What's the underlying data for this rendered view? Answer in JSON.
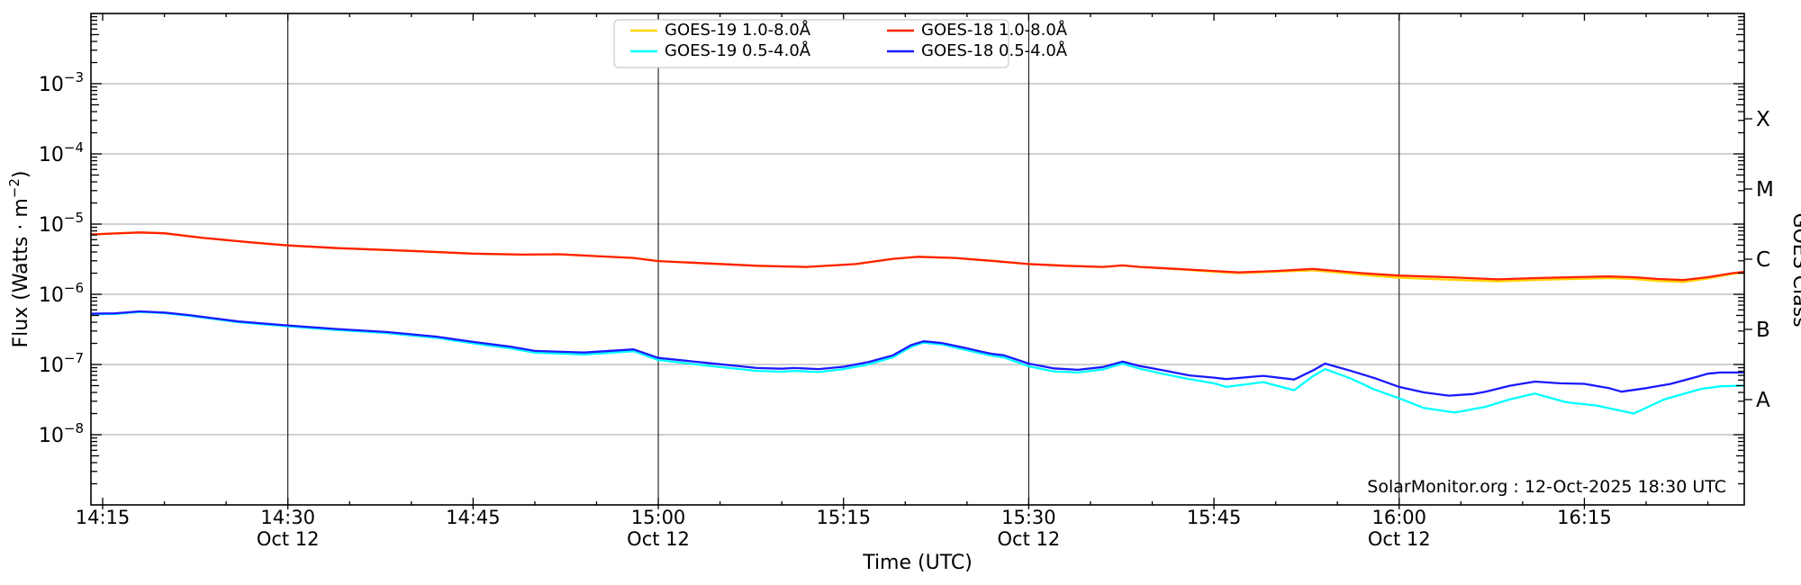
{
  "annotation": "SolarMonitor.org : 12-Oct-2025 18:30 UTC",
  "colors": {
    "background": "#ffffff",
    "frame": "#000000",
    "decade_gridline": "#b3b3b3",
    "time_gridline": "#000000",
    "goes19_long": "#ffd300",
    "goes18_long": "#ff2000",
    "goes19_short": "#00ffff",
    "goes18_short": "#1a1aff"
  },
  "legend": {
    "entries": [
      {
        "label": "GOES-19 1.0-8.0Å",
        "series": "goes19_long"
      },
      {
        "label": "GOES-19 0.5-4.0Å",
        "series": "goes19_short"
      },
      {
        "label": "GOES-18 1.0-8.0Å",
        "series": "goes18_long"
      },
      {
        "label": "GOES-18 0.5-4.0Å",
        "series": "goes18_short"
      }
    ]
  },
  "axes": {
    "x": {
      "title": "Time (UTC)",
      "ticks": [
        {
          "t": 15,
          "label": "14:15"
        },
        {
          "t": 30,
          "label": "14:30",
          "date": "Oct 12",
          "gridline": true
        },
        {
          "t": 45,
          "label": "14:45"
        },
        {
          "t": 60,
          "label": "15:00",
          "date": "Oct 12",
          "gridline": true
        },
        {
          "t": 75,
          "label": "15:15"
        },
        {
          "t": 90,
          "label": "15:30",
          "date": "Oct 12",
          "gridline": true
        },
        {
          "t": 105,
          "label": "15:45"
        },
        {
          "t": 120,
          "label": "16:00",
          "date": "Oct 12",
          "gridline": true
        },
        {
          "t": 135,
          "label": "16:15"
        }
      ],
      "minor_step_min": 5,
      "range_min": [
        14.05,
        147.95
      ]
    },
    "y": {
      "title": {
        "pre": "Flux (Watts · m",
        "sup": "−2",
        "post": ")"
      },
      "top_exponent": -2,
      "bottom_exponent": -9,
      "labeled_decades": [
        -3,
        -4,
        -5,
        -6,
        -7,
        -8
      ]
    },
    "y2": {
      "title": "GOES Class",
      "classes": [
        {
          "letter": "X",
          "mid_exponent": -3.5
        },
        {
          "letter": "M",
          "mid_exponent": -4.5
        },
        {
          "letter": "C",
          "mid_exponent": -5.5
        },
        {
          "letter": "B",
          "mid_exponent": -6.5
        },
        {
          "letter": "A",
          "mid_exponent": -7.5
        }
      ]
    }
  },
  "chart_data": {
    "type": "line",
    "title": "",
    "xlabel": "Time (UTC)",
    "ylabel": "Flux (Watts · m^-2)",
    "x_unit": "minutes after 14:00 UTC, 12-Oct-2025",
    "y_scale": "log10, W/m^2, axis spans 1e-2 (top) to 1e-9 (bottom)",
    "x_range_minutes": [
      14.05,
      147.95
    ],
    "legend_position": "top-center",
    "grid": "horizontal gray per decade; vertical black at 30-min marks",
    "series": [
      {
        "name": "GOES-19 1.0-8.0Å",
        "color": "#ffd300",
        "points": [
          [
            14,
            7.1e-06
          ],
          [
            16,
            7.35e-06
          ],
          [
            18,
            7.6e-06
          ],
          [
            20,
            7.4e-06
          ],
          [
            23,
            6.4e-06
          ],
          [
            27,
            5.5e-06
          ],
          [
            30,
            4.97e-06
          ],
          [
            34,
            4.55e-06
          ],
          [
            40,
            4.15e-06
          ],
          [
            45,
            3.8e-06
          ],
          [
            49,
            3.68e-06
          ],
          [
            52,
            3.72e-06
          ],
          [
            55,
            3.5e-06
          ],
          [
            58,
            3.3e-06
          ],
          [
            60,
            2.97e-06
          ],
          [
            64,
            2.75e-06
          ],
          [
            68,
            2.55e-06
          ],
          [
            72,
            2.45e-06
          ],
          [
            76,
            2.7e-06
          ],
          [
            79,
            3.2e-06
          ],
          [
            81,
            3.42e-06
          ],
          [
            84,
            3.3e-06
          ],
          [
            87,
            3e-06
          ],
          [
            90,
            2.7e-06
          ],
          [
            93,
            2.55e-06
          ],
          [
            96,
            2.45e-06
          ],
          [
            97.6,
            2.58e-06
          ],
          [
            99,
            2.45e-06
          ],
          [
            102,
            2.28e-06
          ],
          [
            105,
            2.1e-06
          ],
          [
            107,
            2e-06
          ],
          [
            110,
            2.1e-06
          ],
          [
            113,
            2.2e-06
          ],
          [
            115,
            2.05e-06
          ],
          [
            117,
            1.9e-06
          ],
          [
            120,
            1.72e-06
          ],
          [
            124,
            1.62e-06
          ],
          [
            128,
            1.53e-06
          ],
          [
            131,
            1.6e-06
          ],
          [
            134,
            1.65e-06
          ],
          [
            137,
            1.7e-06
          ],
          [
            139,
            1.65e-06
          ],
          [
            141,
            1.55e-06
          ],
          [
            143,
            1.5e-06
          ],
          [
            145,
            1.68e-06
          ],
          [
            147,
            1.95e-06
          ],
          [
            148,
            2.05e-06
          ]
        ]
      },
      {
        "name": "GOES-18 1.0-8.0Å",
        "color": "#ff2000",
        "points": [
          [
            14,
            7.1e-06
          ],
          [
            16,
            7.35e-06
          ],
          [
            18,
            7.6e-06
          ],
          [
            20,
            7.4e-06
          ],
          [
            23,
            6.4e-06
          ],
          [
            27,
            5.5e-06
          ],
          [
            30,
            4.97e-06
          ],
          [
            34,
            4.55e-06
          ],
          [
            40,
            4.15e-06
          ],
          [
            45,
            3.8e-06
          ],
          [
            49,
            3.68e-06
          ],
          [
            52,
            3.72e-06
          ],
          [
            55,
            3.5e-06
          ],
          [
            58,
            3.3e-06
          ],
          [
            60,
            2.97e-06
          ],
          [
            64,
            2.75e-06
          ],
          [
            68,
            2.55e-06
          ],
          [
            72,
            2.45e-06
          ],
          [
            76,
            2.7e-06
          ],
          [
            79,
            3.2e-06
          ],
          [
            81,
            3.42e-06
          ],
          [
            84,
            3.3e-06
          ],
          [
            87,
            3e-06
          ],
          [
            90,
            2.7e-06
          ],
          [
            93,
            2.55e-06
          ],
          [
            96,
            2.45e-06
          ],
          [
            97.6,
            2.58e-06
          ],
          [
            99,
            2.45e-06
          ],
          [
            102,
            2.3e-06
          ],
          [
            105,
            2.15e-06
          ],
          [
            107,
            2.05e-06
          ],
          [
            110,
            2.15e-06
          ],
          [
            113,
            2.3e-06
          ],
          [
            115,
            2.15e-06
          ],
          [
            117,
            2e-06
          ],
          [
            120,
            1.85e-06
          ],
          [
            124,
            1.75e-06
          ],
          [
            128,
            1.63e-06
          ],
          [
            131,
            1.7e-06
          ],
          [
            134,
            1.75e-06
          ],
          [
            137,
            1.8e-06
          ],
          [
            139,
            1.75e-06
          ],
          [
            141,
            1.65e-06
          ],
          [
            143,
            1.6e-06
          ],
          [
            145,
            1.75e-06
          ],
          [
            147,
            2e-06
          ],
          [
            148,
            2.1e-06
          ]
        ]
      },
      {
        "name": "GOES-19 0.5-4.0Å",
        "color": "#00ffff",
        "points": [
          [
            14,
            5.2e-07
          ],
          [
            16,
            5.25e-07
          ],
          [
            18,
            5.6e-07
          ],
          [
            20,
            5.4e-07
          ],
          [
            22,
            4.95e-07
          ],
          [
            26,
            4e-07
          ],
          [
            30,
            3.5e-07
          ],
          [
            34,
            3.1e-07
          ],
          [
            38,
            2.8e-07
          ],
          [
            42,
            2.4e-07
          ],
          [
            45,
            2e-07
          ],
          [
            48,
            1.7e-07
          ],
          [
            50,
            1.47e-07
          ],
          [
            54,
            1.39e-07
          ],
          [
            58,
            1.55e-07
          ],
          [
            60,
            1.16e-07
          ],
          [
            64,
            9.6e-08
          ],
          [
            68,
            8.1e-08
          ],
          [
            70,
            7.9e-08
          ],
          [
            71,
            8.1e-08
          ],
          [
            73,
            7.8e-08
          ],
          [
            75,
            8.6e-08
          ],
          [
            77,
            1e-07
          ],
          [
            79,
            1.27e-07
          ],
          [
            80.5,
            1.8e-07
          ],
          [
            81.5,
            2.05e-07
          ],
          [
            83,
            1.93e-07
          ],
          [
            85,
            1.6e-07
          ],
          [
            86,
            1.46e-07
          ],
          [
            87,
            1.34e-07
          ],
          [
            88,
            1.26e-07
          ],
          [
            90,
            9.4e-08
          ],
          [
            92,
            8e-08
          ],
          [
            94,
            7.7e-08
          ],
          [
            96,
            8.5e-08
          ],
          [
            97.6,
            1.03e-07
          ],
          [
            99,
            8.7e-08
          ],
          [
            101,
            7.3e-08
          ],
          [
            103,
            6.2e-08
          ],
          [
            105,
            5.4e-08
          ],
          [
            106,
            4.8e-08
          ],
          [
            109,
            5.6e-08
          ],
          [
            111.5,
            4.3e-08
          ],
          [
            113,
            6.8e-08
          ],
          [
            114,
            8.6e-08
          ],
          [
            116,
            6.4e-08
          ],
          [
            118,
            4.4e-08
          ],
          [
            120,
            3.3e-08
          ],
          [
            122,
            2.4e-08
          ],
          [
            124.5,
            2.07e-08
          ],
          [
            127,
            2.5e-08
          ],
          [
            129,
            3.2e-08
          ],
          [
            131,
            3.85e-08
          ],
          [
            133.5,
            2.9e-08
          ],
          [
            136,
            2.6e-08
          ],
          [
            139,
            2e-08
          ],
          [
            141.5,
            3.2e-08
          ],
          [
            144.5,
            4.5e-08
          ],
          [
            146,
            4.9e-08
          ],
          [
            148,
            5e-08
          ]
        ]
      },
      {
        "name": "GOES-18 0.5-4.0Å",
        "color": "#1a1aff",
        "points": [
          [
            14,
            5.3e-07
          ],
          [
            16,
            5.35e-07
          ],
          [
            18,
            5.7e-07
          ],
          [
            20,
            5.5e-07
          ],
          [
            22,
            5.05e-07
          ],
          [
            26,
            4.1e-07
          ],
          [
            30,
            3.6e-07
          ],
          [
            34,
            3.2e-07
          ],
          [
            38,
            2.9e-07
          ],
          [
            42,
            2.5e-07
          ],
          [
            45,
            2.1e-07
          ],
          [
            48,
            1.8e-07
          ],
          [
            50,
            1.56e-07
          ],
          [
            54,
            1.48e-07
          ],
          [
            58,
            1.64e-07
          ],
          [
            60,
            1.24e-07
          ],
          [
            64,
            1.05e-07
          ],
          [
            68,
            8.9e-08
          ],
          [
            70,
            8.7e-08
          ],
          [
            71,
            8.9e-08
          ],
          [
            73,
            8.6e-08
          ],
          [
            75,
            9.3e-08
          ],
          [
            77,
            1.08e-07
          ],
          [
            79,
            1.35e-07
          ],
          [
            80.5,
            1.9e-07
          ],
          [
            81.5,
            2.14e-07
          ],
          [
            83,
            2.02e-07
          ],
          [
            85,
            1.7e-07
          ],
          [
            86,
            1.55e-07
          ],
          [
            87,
            1.42e-07
          ],
          [
            88,
            1.35e-07
          ],
          [
            90,
            1.03e-07
          ],
          [
            92,
            8.8e-08
          ],
          [
            94,
            8.4e-08
          ],
          [
            96,
            9.2e-08
          ],
          [
            97.6,
            1.1e-07
          ],
          [
            99,
            9.5e-08
          ],
          [
            101,
            8.2e-08
          ],
          [
            103,
            7e-08
          ],
          [
            105,
            6.5e-08
          ],
          [
            106,
            6.2e-08
          ],
          [
            109,
            6.9e-08
          ],
          [
            111.5,
            6.1e-08
          ],
          [
            113,
            8.2e-08
          ],
          [
            114,
            1.03e-07
          ],
          [
            116,
            8.2e-08
          ],
          [
            118,
            6.4e-08
          ],
          [
            120,
            4.8e-08
          ],
          [
            122,
            4e-08
          ],
          [
            124,
            3.6e-08
          ],
          [
            126,
            3.8e-08
          ],
          [
            127,
            4.1e-08
          ],
          [
            129,
            5e-08
          ],
          [
            131,
            5.7e-08
          ],
          [
            133,
            5.4e-08
          ],
          [
            135,
            5.3e-08
          ],
          [
            137,
            4.6e-08
          ],
          [
            138,
            4.1e-08
          ],
          [
            140,
            4.6e-08
          ],
          [
            142,
            5.3e-08
          ],
          [
            144,
            6.6e-08
          ],
          [
            145,
            7.4e-08
          ],
          [
            146,
            7.7e-08
          ],
          [
            148,
            7.7e-08
          ]
        ]
      }
    ]
  }
}
